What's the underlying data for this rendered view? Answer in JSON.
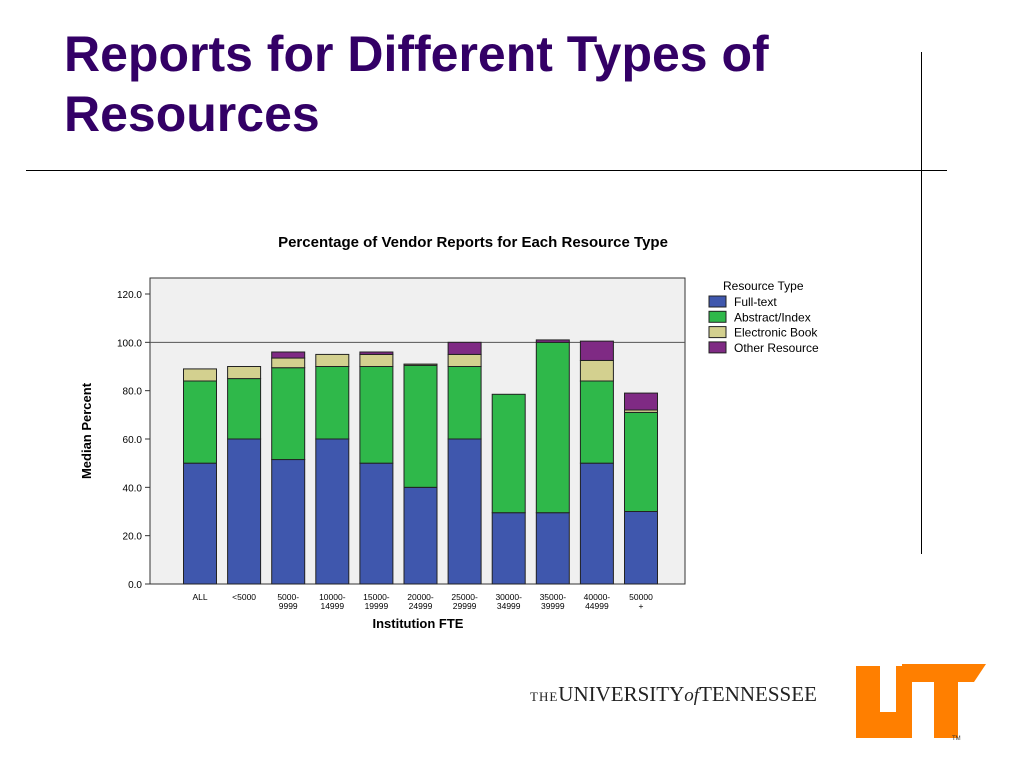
{
  "slide": {
    "title": "Reports for Different Types of Resources"
  },
  "chart_data": {
    "type": "bar",
    "stacked": true,
    "title": "Percentage of Vendor Reports for Each Resource Type",
    "xlabel": "Institution FTE",
    "ylabel": "Median Percent",
    "ylim": [
      0,
      120
    ],
    "yticks": [
      "0.0",
      "20.0",
      "40.0",
      "60.0",
      "80.0",
      "100.0",
      "120.0"
    ],
    "reference_line": 100,
    "legend_title": "Resource Type",
    "legend_position": "right",
    "categories": [
      [
        "ALL"
      ],
      [
        "<5000"
      ],
      [
        "5000-",
        "9999"
      ],
      [
        "10000-",
        "14999"
      ],
      [
        "15000-",
        "19999"
      ],
      [
        "20000-",
        "24999"
      ],
      [
        "25000-",
        "29999"
      ],
      [
        "30000-",
        "34999"
      ],
      [
        "35000-",
        "39999"
      ],
      [
        "40000-",
        "44999"
      ],
      [
        "50000",
        "+"
      ]
    ],
    "series": [
      {
        "name": "Full-text",
        "color": "#3f57ad",
        "values": [
          50,
          60,
          51.5,
          60,
          50,
          40,
          60,
          29.5,
          29.5,
          50,
          30
        ]
      },
      {
        "name": "Abstract/Index",
        "color": "#2fb84a",
        "values": [
          34,
          25,
          38,
          30,
          40,
          50.5,
          30,
          49,
          70.5,
          34,
          41
        ]
      },
      {
        "name": "Electronic Book",
        "color": "#d3d08f",
        "values": [
          5,
          5,
          4,
          5,
          5,
          0.5,
          5,
          0,
          0,
          8.5,
          1
        ]
      },
      {
        "name": "Other Resource",
        "color": "#7f2a84",
        "values": [
          0,
          0,
          2.5,
          0,
          1,
          0,
          5,
          0,
          1,
          8,
          7
        ]
      }
    ]
  },
  "footer": {
    "wordmark_the": "THE",
    "wordmark_university": "UNIVERSITY",
    "wordmark_of": "of",
    "wordmark_state": "TENNESSEE",
    "logo_mark": "UT",
    "logo_tm": "TM",
    "brand_orange": "#ff7f00"
  }
}
